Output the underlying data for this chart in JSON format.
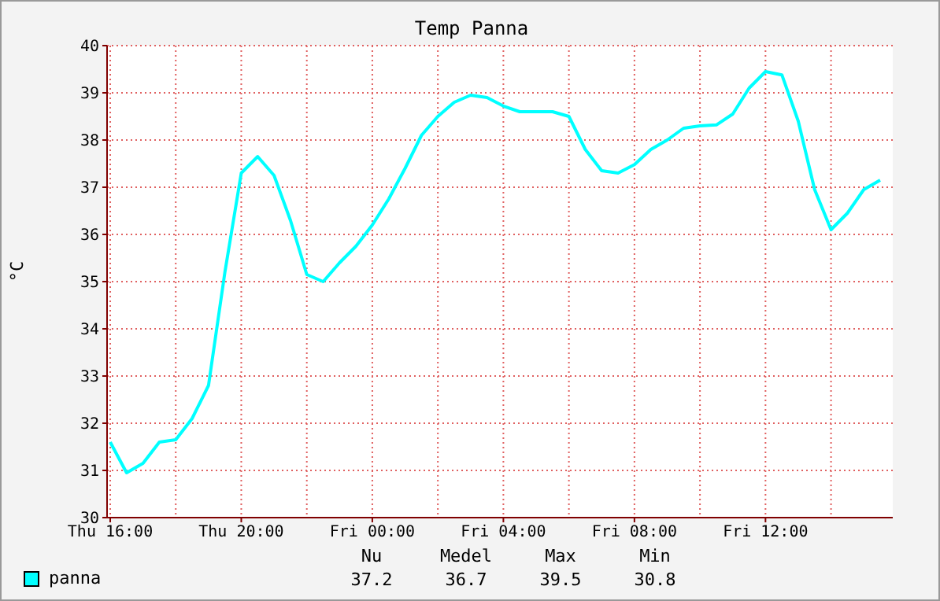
{
  "chart_data": {
    "type": "line",
    "title": "Temp Panna",
    "ylabel": "°C",
    "categories": [
      "Thu 16:00",
      null,
      null,
      null,
      null,
      null,
      null,
      null,
      "Thu 20:00",
      null,
      null,
      null,
      null,
      null,
      null,
      null,
      "Fri 00:00",
      null,
      null,
      null,
      null,
      null,
      null,
      null,
      "Fri 04:00",
      null,
      null,
      null,
      null,
      null,
      null,
      null,
      "Fri 08:00",
      null,
      null,
      null,
      null,
      null,
      null,
      null,
      "Fri 12:00",
      null,
      null,
      null,
      null,
      null,
      null,
      null
    ],
    "series": [
      {
        "name": "panna",
        "color": "#00ffff",
        "values": [
          31.6,
          30.95,
          31.15,
          31.6,
          31.65,
          32.1,
          32.8,
          35.2,
          37.3,
          37.65,
          37.25,
          36.3,
          35.15,
          35.0,
          35.4,
          35.75,
          36.2,
          36.75,
          37.4,
          38.1,
          38.5,
          38.8,
          38.95,
          38.9,
          38.72,
          38.6,
          38.6,
          38.6,
          38.5,
          37.8,
          37.35,
          37.3,
          37.48,
          37.8,
          38.0,
          38.25,
          38.3,
          38.32,
          38.55,
          39.1,
          39.45,
          39.38,
          38.4,
          36.95,
          36.1,
          36.45,
          36.95,
          37.15
        ]
      }
    ],
    "ylim": [
      30,
      40
    ],
    "yticks": [
      30,
      31,
      32,
      33,
      34,
      35,
      36,
      37,
      38,
      39,
      40
    ],
    "grid": true,
    "legend": "bottom left",
    "marker": "none",
    "line_style": "solid",
    "annotations": [
      "Nu",
      "Medel",
      "Max",
      "Min",
      "37.2",
      "36.7",
      "39.5",
      "30.8"
    ]
  }
}
